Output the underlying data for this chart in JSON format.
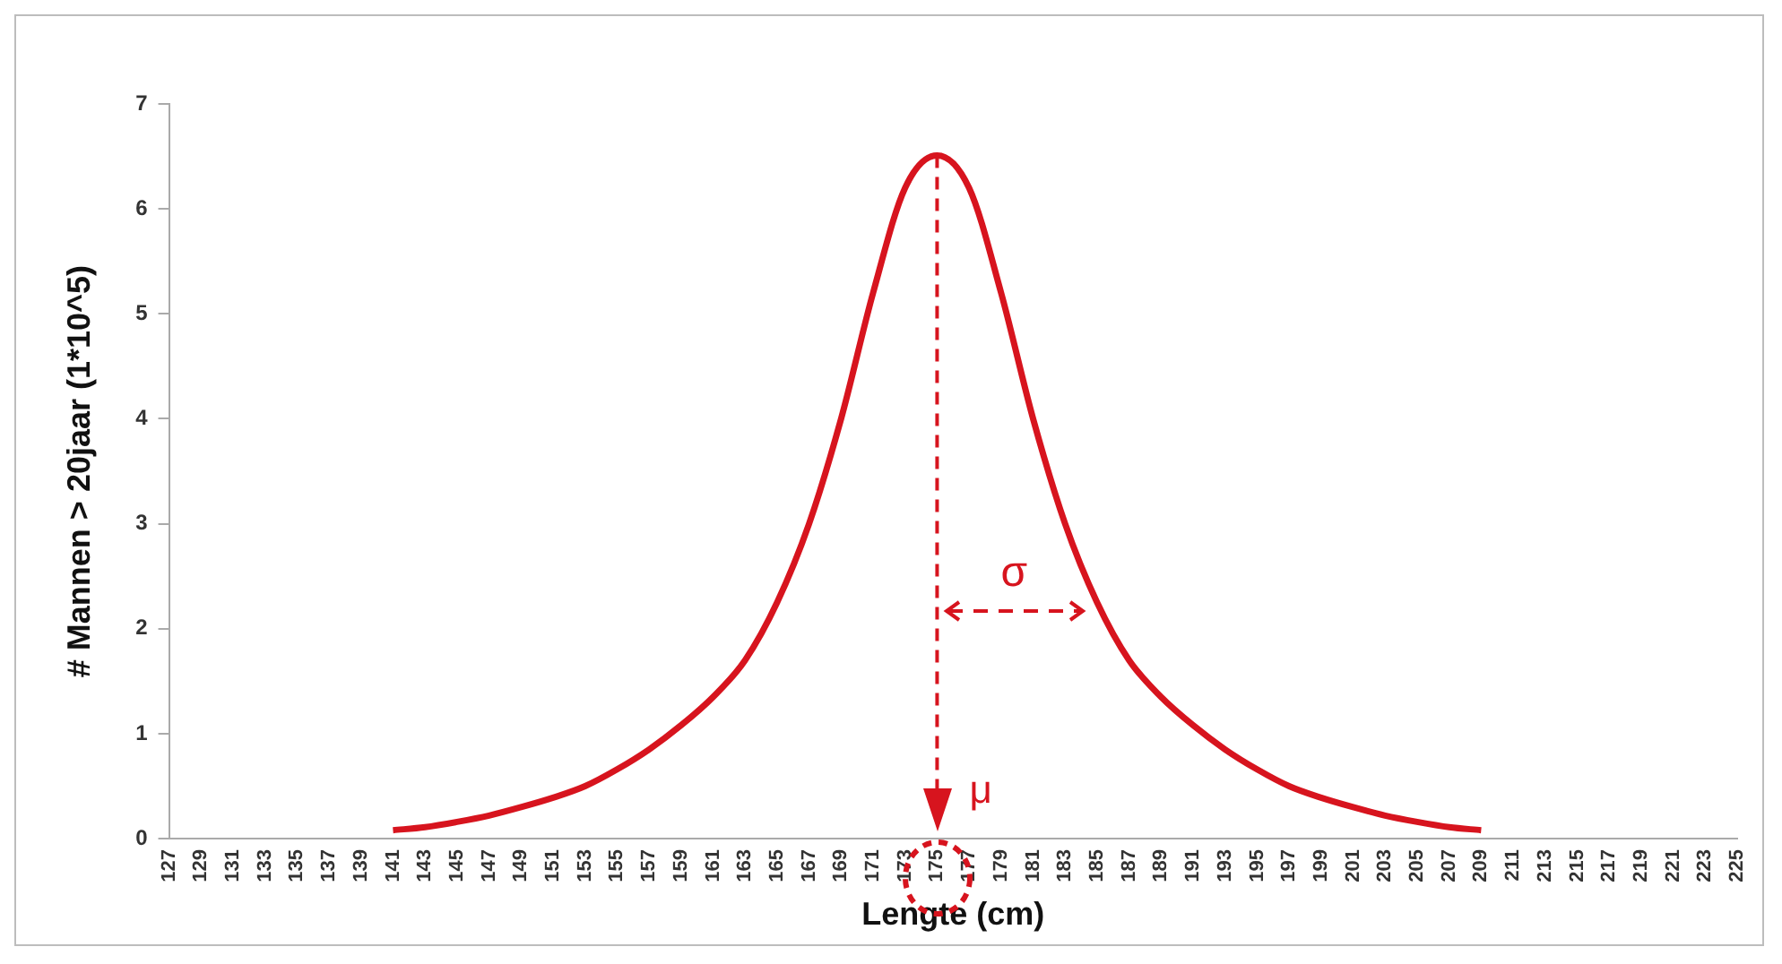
{
  "chart_data": {
    "type": "line",
    "xlabel": "Lengte (cm)",
    "ylabel": "# Mannen > 20jaar (1*10^5)",
    "categories": [
      "127",
      "129",
      "131",
      "133",
      "135",
      "137",
      "139",
      "141",
      "143",
      "145",
      "147",
      "149",
      "151",
      "153",
      "155",
      "157",
      "159",
      "161",
      "163",
      "165",
      "167",
      "169",
      "171",
      "173",
      "175",
      "177",
      "179",
      "181",
      "183",
      "185",
      "187",
      "189",
      "191",
      "193",
      "195",
      "197",
      "199",
      "201",
      "203",
      "205",
      "207",
      "209",
      "211",
      "213",
      "215",
      "217",
      "219",
      "221",
      "223",
      "225"
    ],
    "series": [
      {
        "color": "#d7141e",
        "values": [
          null,
          null,
          null,
          null,
          null,
          null,
          null,
          0.08,
          0.11,
          0.16,
          0.22,
          0.3,
          0.39,
          0.5,
          0.66,
          0.85,
          1.08,
          1.35,
          1.7,
          2.25,
          3.0,
          4.0,
          5.2,
          6.2,
          6.51,
          6.2,
          5.2,
          4.0,
          3.0,
          2.25,
          1.7,
          1.35,
          1.08,
          0.85,
          0.66,
          0.5,
          0.39,
          0.3,
          0.22,
          0.16,
          0.11,
          0.08,
          null,
          null,
          null,
          null,
          null,
          null,
          null,
          null
        ]
      }
    ],
    "ylim": [
      0,
      7
    ],
    "yticks": [
      0,
      1,
      2,
      3,
      4,
      5,
      6,
      7
    ],
    "grid": false,
    "legend": false,
    "marker": "none",
    "line_style": "solid",
    "ref_lines": [
      {
        "axis": "x",
        "value": "175",
        "label": "μ",
        "color": "#d7141e",
        "line_style": "dashed"
      }
    ],
    "annotations": [
      "σ"
    ]
  }
}
